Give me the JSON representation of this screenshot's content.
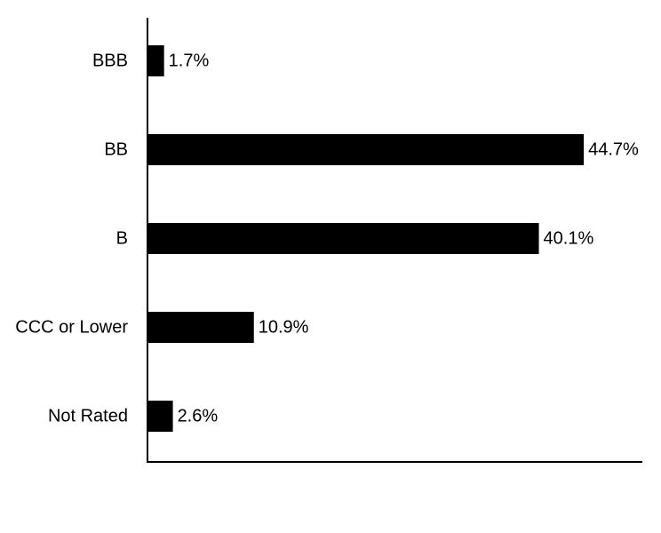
{
  "chart_data": {
    "type": "bar",
    "orientation": "horizontal",
    "title": "",
    "xlabel": "",
    "ylabel": "",
    "categories": [
      "BBB",
      "BB",
      "B",
      "CCC or Lower",
      "Not Rated"
    ],
    "values": [
      1.7,
      44.7,
      40.1,
      10.9,
      2.6
    ],
    "value_labels": [
      "1.7%",
      "44.7%",
      "40.1%",
      "10.9%",
      "2.6%"
    ],
    "xlim": [
      0,
      50.7
    ],
    "grid": false,
    "legend": "none",
    "bar_color": "#000000",
    "axis_color": "#000000"
  }
}
